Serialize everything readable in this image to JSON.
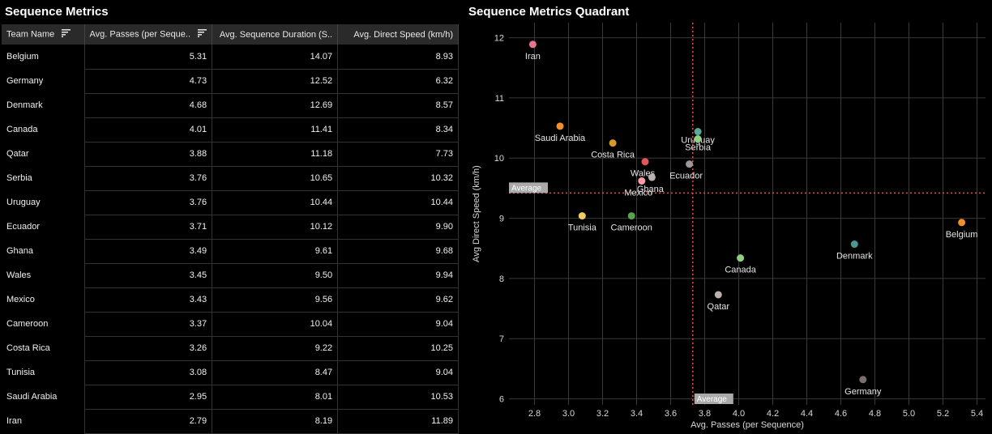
{
  "table": {
    "title": "Sequence Metrics",
    "columns": [
      "Team Name",
      "Avg. Passes (per Seque..",
      "Avg. Sequence Duration (S..",
      "Avg. Direct Speed (km/h)"
    ],
    "rows": [
      {
        "team": "Belgium",
        "passes": "5.31",
        "duration": "14.07",
        "speed": "8.93"
      },
      {
        "team": "Germany",
        "passes": "4.73",
        "duration": "12.52",
        "speed": "6.32"
      },
      {
        "team": "Denmark",
        "passes": "4.68",
        "duration": "12.69",
        "speed": "8.57"
      },
      {
        "team": "Canada",
        "passes": "4.01",
        "duration": "11.41",
        "speed": "8.34"
      },
      {
        "team": "Qatar",
        "passes": "3.88",
        "duration": "11.18",
        "speed": "7.73"
      },
      {
        "team": "Serbia",
        "passes": "3.76",
        "duration": "10.65",
        "speed": "10.32"
      },
      {
        "team": "Uruguay",
        "passes": "3.76",
        "duration": "10.44",
        "speed": "10.44"
      },
      {
        "team": "Ecuador",
        "passes": "3.71",
        "duration": "10.12",
        "speed": "9.90"
      },
      {
        "team": "Ghana",
        "passes": "3.49",
        "duration": "9.61",
        "speed": "9.68"
      },
      {
        "team": "Wales",
        "passes": "3.45",
        "duration": "9.50",
        "speed": "9.94"
      },
      {
        "team": "Mexico",
        "passes": "3.43",
        "duration": "9.56",
        "speed": "9.62"
      },
      {
        "team": "Cameroon",
        "passes": "3.37",
        "duration": "10.04",
        "speed": "9.04"
      },
      {
        "team": "Costa Rica",
        "passes": "3.26",
        "duration": "9.22",
        "speed": "10.25"
      },
      {
        "team": "Tunisia",
        "passes": "3.08",
        "duration": "8.47",
        "speed": "9.04"
      },
      {
        "team": "Saudi Arabia",
        "passes": "2.95",
        "duration": "8.01",
        "speed": "10.53"
      },
      {
        "team": "Iran",
        "passes": "2.79",
        "duration": "8.19",
        "speed": "11.89"
      }
    ]
  },
  "chart_data": {
    "type": "scatter",
    "title": "Sequence Metrics Quadrant",
    "xlabel": "Avg. Passes (per Sequence)",
    "ylabel": "Avg Direct Speed (km/h)",
    "xlim": [
      2.65,
      5.45
    ],
    "ylim": [
      5.9,
      12.25
    ],
    "xticks": [
      2.8,
      3.0,
      3.2,
      3.4,
      3.6,
      3.8,
      4.0,
      4.2,
      4.4,
      4.6,
      4.8,
      5.0,
      5.2,
      5.4
    ],
    "yticks": [
      6,
      7,
      8,
      9,
      10,
      11,
      12
    ],
    "grid": true,
    "average_x": 3.73,
    "average_y": 9.42,
    "average_label": "Average",
    "points": [
      {
        "label": "Iran",
        "x": 2.79,
        "y": 11.89,
        "color": "#e8738f"
      },
      {
        "label": "Saudi Arabia",
        "x": 2.95,
        "y": 10.53,
        "color": "#f28e2b"
      },
      {
        "label": "Costa Rica",
        "x": 3.26,
        "y": 10.25,
        "color": "#d49a2a"
      },
      {
        "label": "Wales",
        "x": 3.45,
        "y": 9.94,
        "color": "#e15759"
      },
      {
        "label": "Ghana",
        "x": 3.49,
        "y": 9.68,
        "color": "#bab0ac"
      },
      {
        "label": "Mexico",
        "x": 3.43,
        "y": 9.62,
        "color": "#ff9da7"
      },
      {
        "label": "Uruguay",
        "x": 3.76,
        "y": 10.44,
        "color": "#59a89c"
      },
      {
        "label": "Serbia",
        "x": 3.76,
        "y": 10.32,
        "color": "#8cd17d"
      },
      {
        "label": "Ecuador",
        "x": 3.71,
        "y": 9.9,
        "color": "#9a9a9a"
      },
      {
        "label": "Cameroon",
        "x": 3.37,
        "y": 9.04,
        "color": "#59a14f"
      },
      {
        "label": "Tunisia",
        "x": 3.08,
        "y": 9.04,
        "color": "#f1ce63"
      },
      {
        "label": "Canada",
        "x": 4.01,
        "y": 8.34,
        "color": "#8cd17d"
      },
      {
        "label": "Qatar",
        "x": 3.88,
        "y": 7.73,
        "color": "#bab0ac"
      },
      {
        "label": "Denmark",
        "x": 4.68,
        "y": 8.57,
        "color": "#499894"
      },
      {
        "label": "Belgium",
        "x": 5.31,
        "y": 8.93,
        "color": "#f28e2b"
      },
      {
        "label": "Germany",
        "x": 4.73,
        "y": 6.32,
        "color": "#79706e"
      }
    ]
  }
}
